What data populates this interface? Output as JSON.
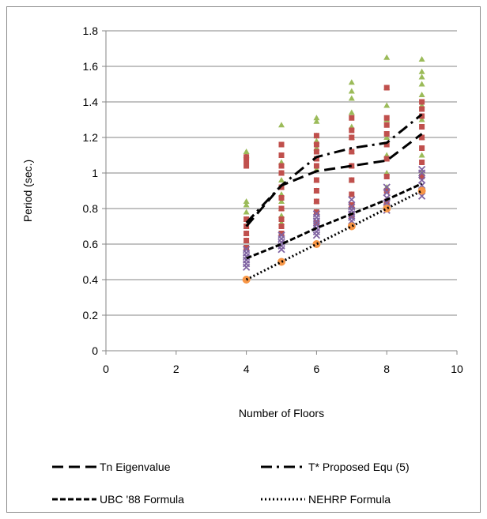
{
  "chart_data": {
    "type": "scatter",
    "title": "",
    "xlabel": "Number of Floors",
    "ylabel": "Period (sec.)",
    "xlim": [
      0,
      10
    ],
    "ylim": [
      0,
      1.8
    ],
    "x_ticks": [
      "0",
      "2",
      "4",
      "6",
      "8",
      "10"
    ],
    "y_ticks": [
      "0",
      "0.2",
      "0.4",
      "0.6",
      "0.8",
      "1",
      "1.2",
      "1.4",
      "1.6",
      "1.8"
    ],
    "grid": "horizontal",
    "legend_position": "bottom",
    "scatter_series": [
      {
        "marker": "triangle",
        "color": "#9bbb59",
        "points": [
          [
            4,
            0.62
          ],
          [
            4,
            0.66
          ],
          [
            4,
            0.7
          ],
          [
            4,
            0.74
          ],
          [
            4,
            0.78
          ],
          [
            4,
            0.82
          ],
          [
            4,
            0.84
          ],
          [
            4,
            1.1
          ],
          [
            4,
            1.12
          ],
          [
            5,
            0.72
          ],
          [
            5,
            0.76
          ],
          [
            5,
            0.8
          ],
          [
            5,
            0.84
          ],
          [
            5,
            0.88
          ],
          [
            5,
            0.92
          ],
          [
            5,
            0.96
          ],
          [
            5,
            1.0
          ],
          [
            5,
            1.06
          ],
          [
            5,
            1.27
          ],
          [
            6,
            0.78
          ],
          [
            6,
            0.84
          ],
          [
            6,
            0.9
          ],
          [
            6,
            0.96
          ],
          [
            6,
            1.02
          ],
          [
            6,
            1.08
          ],
          [
            6,
            1.14
          ],
          [
            6,
            1.18
          ],
          [
            6,
            1.21
          ],
          [
            6,
            1.29
          ],
          [
            6,
            1.31
          ],
          [
            7,
            0.88
          ],
          [
            7,
            0.96
          ],
          [
            7,
            1.04
          ],
          [
            7,
            1.12
          ],
          [
            7,
            1.2
          ],
          [
            7,
            1.26
          ],
          [
            7,
            1.34
          ],
          [
            7,
            1.42
          ],
          [
            7,
            1.46
          ],
          [
            7,
            1.51
          ],
          [
            8,
            0.92
          ],
          [
            8,
            1.0
          ],
          [
            8,
            1.1
          ],
          [
            8,
            1.2
          ],
          [
            8,
            1.3
          ],
          [
            8,
            1.38
          ],
          [
            8,
            1.48
          ],
          [
            8,
            1.65
          ],
          [
            9,
            1.0
          ],
          [
            9,
            1.1
          ],
          [
            9,
            1.2
          ],
          [
            9,
            1.3
          ],
          [
            9,
            1.38
          ],
          [
            9,
            1.44
          ],
          [
            9,
            1.5
          ],
          [
            9,
            1.54
          ],
          [
            9,
            1.57
          ],
          [
            9,
            1.64
          ]
        ]
      },
      {
        "marker": "square",
        "color": "#c0504d",
        "points": [
          [
            4,
            0.58
          ],
          [
            4,
            0.62
          ],
          [
            4,
            0.66
          ],
          [
            4,
            0.7
          ],
          [
            4,
            0.74
          ],
          [
            4,
            1.04
          ],
          [
            4,
            1.07
          ],
          [
            4,
            1.09
          ],
          [
            5,
            0.66
          ],
          [
            5,
            0.7
          ],
          [
            5,
            0.74
          ],
          [
            5,
            0.8
          ],
          [
            5,
            0.86
          ],
          [
            5,
            0.92
          ],
          [
            5,
            1.0
          ],
          [
            5,
            1.04
          ],
          [
            5,
            1.1
          ],
          [
            5,
            1.16
          ],
          [
            6,
            0.72
          ],
          [
            6,
            0.78
          ],
          [
            6,
            0.84
          ],
          [
            6,
            0.9
          ],
          [
            6,
            0.96
          ],
          [
            6,
            1.04
          ],
          [
            6,
            1.08
          ],
          [
            6,
            1.12
          ],
          [
            6,
            1.16
          ],
          [
            6,
            1.21
          ],
          [
            7,
            0.76
          ],
          [
            7,
            0.82
          ],
          [
            7,
            0.88
          ],
          [
            7,
            0.96
          ],
          [
            7,
            1.04
          ],
          [
            7,
            1.12
          ],
          [
            7,
            1.2
          ],
          [
            7,
            1.24
          ],
          [
            7,
            1.31
          ],
          [
            8,
            0.84
          ],
          [
            8,
            0.9
          ],
          [
            8,
            0.98
          ],
          [
            8,
            1.08
          ],
          [
            8,
            1.16
          ],
          [
            8,
            1.22
          ],
          [
            8,
            1.27
          ],
          [
            8,
            1.31
          ],
          [
            8,
            1.48
          ],
          [
            9,
            0.9
          ],
          [
            9,
            0.98
          ],
          [
            9,
            1.06
          ],
          [
            9,
            1.14
          ],
          [
            9,
            1.2
          ],
          [
            9,
            1.26
          ],
          [
            9,
            1.32
          ],
          [
            9,
            1.36
          ],
          [
            9,
            1.4
          ]
        ]
      },
      {
        "marker": "x",
        "color": "#8064a2",
        "points": [
          [
            4,
            0.47
          ],
          [
            4,
            0.49
          ],
          [
            4,
            0.51
          ],
          [
            4,
            0.53
          ],
          [
            4,
            0.55
          ],
          [
            4,
            0.57
          ],
          [
            5,
            0.57
          ],
          [
            5,
            0.59
          ],
          [
            5,
            0.61
          ],
          [
            5,
            0.63
          ],
          [
            5,
            0.65
          ],
          [
            6,
            0.65
          ],
          [
            6,
            0.67
          ],
          [
            6,
            0.69
          ],
          [
            6,
            0.71
          ],
          [
            6,
            0.73
          ],
          [
            6,
            0.75
          ],
          [
            6,
            0.77
          ],
          [
            7,
            0.73
          ],
          [
            7,
            0.75
          ],
          [
            7,
            0.77
          ],
          [
            7,
            0.79
          ],
          [
            7,
            0.81
          ],
          [
            7,
            0.85
          ],
          [
            8,
            0.79
          ],
          [
            8,
            0.81
          ],
          [
            8,
            0.83
          ],
          [
            8,
            0.86
          ],
          [
            8,
            0.89
          ],
          [
            8,
            0.92
          ],
          [
            9,
            0.87
          ],
          [
            9,
            0.9
          ],
          [
            9,
            0.93
          ],
          [
            9,
            0.96
          ],
          [
            9,
            1.0
          ],
          [
            9,
            1.02
          ]
        ]
      },
      {
        "marker": "circle",
        "color": "#f79646",
        "points": [
          [
            4,
            0.4
          ],
          [
            5,
            0.5
          ],
          [
            6,
            0.6
          ],
          [
            7,
            0.7
          ],
          [
            8,
            0.8
          ],
          [
            9,
            0.9
          ]
        ]
      }
    ],
    "line_series": [
      {
        "name": "Tn  Eigenvalue",
        "style": "long-dash",
        "x": [
          4,
          5,
          6,
          7,
          8,
          9
        ],
        "y": [
          0.7,
          0.93,
          1.01,
          1.04,
          1.07,
          1.22
        ]
      },
      {
        "name": "T*  Proposed Equ (5)",
        "style": "dash-dot",
        "x": [
          4,
          5,
          6,
          7,
          8,
          9
        ],
        "y": [
          0.72,
          0.93,
          1.09,
          1.14,
          1.17,
          1.33
        ]
      },
      {
        "name": "UBC '88 Formula",
        "style": "short-dash",
        "x": [
          4,
          5,
          6,
          7,
          8,
          9
        ],
        "y": [
          0.52,
          0.6,
          0.69,
          0.77,
          0.85,
          0.94
        ]
      },
      {
        "name": "NEHRP Formula",
        "style": "dotted",
        "x": [
          4,
          5,
          6,
          7,
          8,
          9
        ],
        "y": [
          0.4,
          0.5,
          0.6,
          0.7,
          0.8,
          0.9
        ]
      }
    ]
  }
}
